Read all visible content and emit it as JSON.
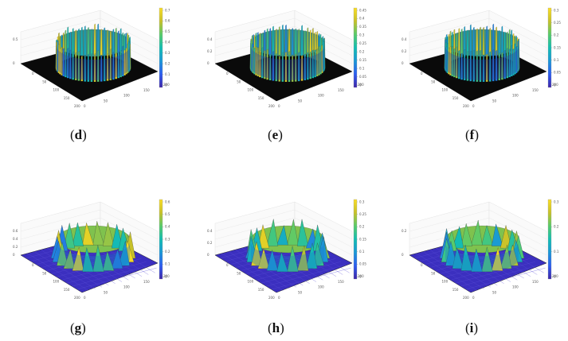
{
  "panels": [
    {
      "caption_letter": "d",
      "style": "fine",
      "colorbar_ticks": [
        "0.7",
        "0.6",
        "0.5",
        "0.4",
        "0.3",
        "0.2",
        "0.1",
        "0"
      ],
      "z_ticks": [
        "0.5",
        "0"
      ],
      "axis_ticks": [
        "200",
        "150",
        "100",
        "50",
        "0",
        "0",
        "50",
        "100",
        "150",
        "200"
      ]
    },
    {
      "caption_letter": "e",
      "style": "fine",
      "colorbar_ticks": [
        "0.45",
        "0.4",
        "0.35",
        "0.3",
        "0.25",
        "0.2",
        "0.15",
        "0.1",
        "0.05",
        "0"
      ],
      "z_ticks": [
        "0.4",
        "0.2",
        "0"
      ],
      "axis_ticks": [
        "200",
        "150",
        "100",
        "50",
        "0",
        "0",
        "50",
        "100",
        "150",
        "200"
      ]
    },
    {
      "caption_letter": "f",
      "style": "fine",
      "colorbar_ticks": [
        "0.3",
        "0.25",
        "0.2",
        "0.15",
        "0.1",
        "0.05",
        "0"
      ],
      "z_ticks": [
        "0.4",
        "0.2",
        "0"
      ],
      "axis_ticks": [
        "200",
        "150",
        "100",
        "50",
        "0",
        "0",
        "50",
        "100",
        "150",
        "200"
      ]
    },
    {
      "caption_letter": "g",
      "style": "coarse",
      "colorbar_ticks": [
        "0.6",
        "0.5",
        "0.4",
        "0.3",
        "0.2",
        "0.1",
        "0"
      ],
      "z_ticks": [
        "0.6",
        "0.4",
        "0.2",
        "0"
      ],
      "axis_ticks": [
        "200",
        "150",
        "100",
        "50",
        "0",
        "0",
        "50",
        "100",
        "150",
        "200"
      ]
    },
    {
      "caption_letter": "h",
      "style": "coarse",
      "colorbar_ticks": [
        "0.3",
        "0.25",
        "0.2",
        "0.15",
        "0.1",
        "0.05",
        "0"
      ],
      "z_ticks": [
        "0.4",
        "0.2",
        "0"
      ],
      "axis_ticks": [
        "200",
        "150",
        "100",
        "50",
        "0",
        "0",
        "50",
        "100",
        "150",
        "200"
      ]
    },
    {
      "caption_letter": "i",
      "style": "coarse",
      "colorbar_ticks": [
        "0.3",
        "0.2",
        "0.1",
        "0"
      ],
      "z_ticks": [
        "0.2",
        "0"
      ],
      "axis_ticks": [
        "200",
        "150",
        "100",
        "50",
        "0",
        "0",
        "50",
        "100",
        "150",
        "200"
      ]
    }
  ],
  "colormap": [
    "#3e26a8",
    "#2e5df0",
    "#1b97d6",
    "#13bdb2",
    "#58cb6a",
    "#c7c129",
    "#f9dd25"
  ],
  "floor_colors": {
    "fine": "#0a0a0a",
    "coarse": "#3b2fbf"
  }
}
